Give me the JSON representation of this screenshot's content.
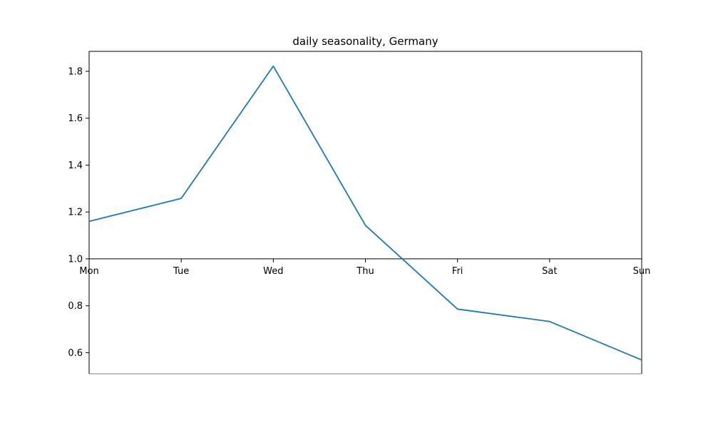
{
  "chart_data": {
    "type": "line",
    "title": "daily seasonality, Germany",
    "xlabel": "",
    "ylabel": "",
    "categories": [
      "Mon",
      "Tue",
      "Wed",
      "Thu",
      "Fri",
      "Sat",
      "Sun"
    ],
    "series": [
      {
        "values": [
          1.16,
          1.258,
          1.822,
          1.143,
          0.786,
          0.733,
          0.569
        ]
      }
    ],
    "ylim": [
      0.51,
      1.885
    ],
    "yticks": [
      0.6,
      0.8,
      1.0,
      1.2,
      1.4,
      1.6,
      1.8
    ],
    "ytick_labels": [
      "0.6",
      "0.8",
      "1.0",
      "1.2",
      "1.4",
      "1.6",
      "1.8"
    ],
    "x_axis_at_y": 1.0,
    "grid": false,
    "colors": {
      "line": "#1f77b4",
      "axes": "#000000",
      "bottom_spine": "#808080"
    }
  }
}
